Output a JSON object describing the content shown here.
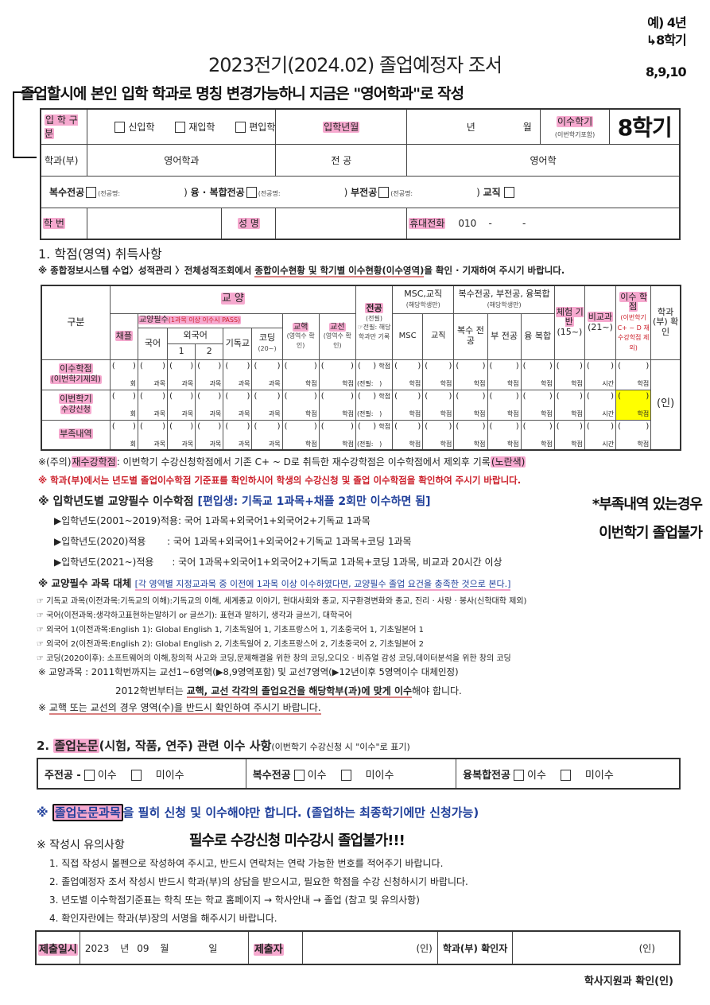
{
  "title": "2023전기(2024.02) 졸업예정자 조서",
  "annotations": {
    "top_note": "졸업할시에 본인 입학 학과로 명칭 변경가능하니 지금은 \"영어학과\"로 작성",
    "top_right": [
      "예) 4년",
      "↳8학기",
      "8,9,10"
    ],
    "semester": "8학기",
    "deficiency_note": [
      "*부족내역 있는경우",
      "이번학기 졸업불가"
    ],
    "thesis_note": "필수로 수강신청 미수강시 졸업불가!!!"
  },
  "info": {
    "admission_type_label": "입 학 구 분",
    "admission_types": [
      "신입학",
      "재입학",
      "편입학"
    ],
    "admission_date_label": "입학년월",
    "year_unit": "년",
    "month_unit": "월",
    "semesters_label": "이수학기",
    "semesters_sub": "(이번학기포함)",
    "dept_label": "학과(부)",
    "dept_value": "영어학과",
    "major_label": "전 공",
    "major_value": "영어학",
    "double_major": "복수전공",
    "convergence_major": "융 · 복합전공",
    "minor": "부전공",
    "teaching": "교직",
    "major_name_placeholder": "(전공명:",
    "student_id_label": "학 번",
    "name_label": "성 명",
    "phone_label": "휴대전화",
    "phone_value": "010    -          -"
  },
  "section1": {
    "heading": "1. 학점(영역) 취득사항",
    "note_prefix": "※ 종합정보시스템 수업〉성적관리 〉전체성적조회에서 ",
    "note_underlined": "종합이수현황 및 학기별 이수현황(이수영역)",
    "note_suffix": "을 확인 · 기재하여 주시기 바랍니다."
  },
  "credit_table": {
    "h_category": "구분",
    "h_liberal": "교 양",
    "h_chapel": "채플",
    "h_required": "교양필수",
    "h_required_note": "(1과목 이상 이수시 PASS)",
    "h_korean": "국어",
    "h_foreign": "외국어",
    "h_f1": "1",
    "h_f2": "2",
    "h_christian": "기독교",
    "h_coding": "코딩",
    "h_coding_sub": "(20~)",
    "h_core": "교핵",
    "h_core_sub": "(영역수 확인)",
    "h_elective": "교선",
    "h_elective_sub": "(영역수 확인)",
    "h_major": "전공",
    "h_major_sub": "(전필)",
    "h_major_note": "☞전필: 해당학과만 기록",
    "h_msc": "MSC,교직",
    "h_msc_sub": "(해당학생만)",
    "h_msc1": "MSC",
    "h_teach": "교직",
    "h_double": "복수전공, 부전공, 융복합",
    "h_double_sub": "(해당학생만)",
    "h_d1": "복수 전공",
    "h_d2": "부 전공",
    "h_d3": "융 복합",
    "h_exp": "체험 기반",
    "h_exp_sub": "(15~)",
    "h_extra": "비교과",
    "h_extra_sub": "(21~)",
    "h_total": "이수 학점",
    "h_total_sub": "(이번학기 C+ ~ D 재수강학점 제외)",
    "h_confirm": "학과 (부) 확인",
    "confirm_mark": "(인)",
    "units": [
      "회",
      "과목",
      "과목",
      "과목",
      "과목",
      "과목",
      "학점",
      "학점",
      "학점",
      "학점",
      "학점",
      "학점",
      "학점",
      "학점",
      "학점",
      "시간",
      "학점"
    ],
    "major_sub_cell": "(전필:   )",
    "rows": [
      {
        "label": "이수학점",
        "sub": "(이번학기제외)"
      },
      {
        "label": "이번학기",
        "sub": "수강신청"
      },
      {
        "label": "부족내역",
        "sub": ""
      }
    ],
    "highlight_color": "#ffff00"
  },
  "notes": {
    "retake_prefix": "※(주의)",
    "retake_hl": "재수강학점",
    "retake_text": ": 이번학기 수강신청학점에서 기존 C+ ~ D로 취득한 재수강학점은 이수학점에서 제외후 기록",
    "retake_color": "(노란색)",
    "dept_check": "※ 학과(부)에서는 년도별 졸업이수학점 기준표를 확인하시어 학생의 수강신청 및 졸업 이수학점을 확인하여 주시기 바랍니다.",
    "req_heading": "※ 입학년도별 교양필수 이수학점 ",
    "req_transfer": "[편입생: 기독교 1과목+채플 2회만 이수하면 됨]",
    "req_rows": [
      "▶입학년도(2001~2019)적용: 국어 1과목+외국어1+외국어2+기독교 1과목",
      "▶입학년도(2020)적용       : 국어 1과목+외국어1+외국어2+기독교 1과목+코딩 1과목",
      "▶입학년도(2021~)적용      : 국어 1과목+외국어1+외국어2+기독교 1과목+코딩 1과목, 비교과 20시간 이상"
    ],
    "subst_heading": "※ 교양필수 과목 대체 ",
    "subst_text": "[각 영역별 지정교과목 중 이전에 1과목 이상 이수하였다면, 교양필수 졸업 요건을 충족한 것으로 본다.]",
    "subst_rows": [
      "☞ 기독교 과목(이전과목:기독교의 이해):기독교의 이해, 세계종교 이야기, 현대사회와 종교, 지구환경변화와 종교, 진리 · 사랑 · 봉사(신학대학 제외)",
      "☞ 국어(이전과목:생각하고표현하는말하기 or 글쓰기): 표현과 말하기, 생각과 글쓰기, 대학국어",
      "☞ 외국어 1(이전과목:English 1): Global English 1, 기초독일어 1, 기초프랑스어 1, 기초중국어 1, 기초일본어 1",
      "☞ 외국어 2(이전과목:English 2): Global English 2, 기초독일어 2, 기초프랑스어 2, 기초중국어 2, 기초일본어 2",
      "☞ 코딩(2020이후): 소프트웨어의 이해,창의적 사고와 코딩,문제해결을 위한 창의 코딩,오디오 · 비쥬얼 감성 코딩,데이터분석을 위한 창의 코딩"
    ],
    "liberal_1": "※ 교양과목 : 2011학번까지는 교선1~6영역(▶8,9영역포함) 및 교선7영역(▶12년이후 5영역이수 대체인정)",
    "liberal_2a": "2012학번부터는 ",
    "liberal_2b": "교핵, 교선 각각의 졸업요건을 해당학부(과)에 맞게 이수",
    "liberal_2c": "해야 합니다.",
    "liberal_3a": "※ ",
    "liberal_3b": "교핵 또는 교선의 경우 영역(수)을 반드시 확인하여 주시기 바랍니다."
  },
  "section2": {
    "heading_a": "2. ",
    "heading_hl": "졸업논문",
    "heading_b": "(시험, 작품, 연주) 관련 이수 사항",
    "heading_sub": "(이번학기 수강신청 시 \"이수\"로 표기)",
    "cols": [
      {
        "label": "주전공 -"
      },
      {
        "label": "복수전공"
      },
      {
        "label": "융복합전공"
      }
    ],
    "done": "이수",
    "not_done": "미이수",
    "must_prefix": "※ ",
    "must_hl": "졸업논문과목",
    "must_text": "을 필히 신청 및 이수해야만 합니다. (졸업하는 최종학기에만 신청가능)",
    "guide_heading": "※ 작성시 유의사항",
    "guide": [
      "1. 직접 작성시 볼펜으로 작성하여 주시고, 반드시 연락처는 연락 가능한 번호를 적어주기 바랍니다.",
      "2. 졸업예정자 조서 작성시 반드시 학과(부)의 상담을 받으시고, 필요한 학점을 수강 신청하시기 바랍니다.",
      "3. 년도별 이수학점기준표는 학칙 또는 학교 홈페이지 → 학사안내 → 졸업 (참고 및 유의사항)",
      "4. 확인자란에는 학과(부)장의 서명을 해주시기 바랍니다."
    ]
  },
  "submit": {
    "date_label": "제출일시",
    "year": "2023",
    "year_unit": "년",
    "month": "09",
    "month_unit": "월",
    "day_unit": "일",
    "submitter_label": "제출자",
    "seal": "(인)",
    "confirmer_label": "학과(부) 확인자",
    "confirmer_seal": "(인)",
    "office_confirm": "학사지원과 확인(인)"
  }
}
